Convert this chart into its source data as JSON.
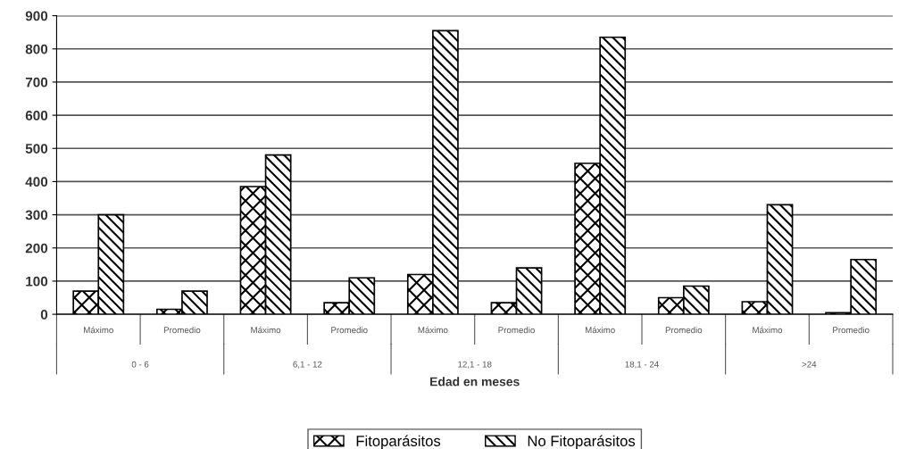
{
  "chart_data": {
    "type": "bar",
    "xlabel": "Edad en meses",
    "categories": [
      "Máximo",
      "Promedio",
      "Máximo",
      "Promedio",
      "Máximo",
      "Promedio",
      "Máximo",
      "Promedio",
      "Máximo",
      "Promedio"
    ],
    "annotations": [
      "0 - 6",
      "6,1 - 12",
      "12,1 - 18",
      "18,1 - 24",
      ">24"
    ],
    "series": [
      {
        "name": "Fitoparásitos",
        "color": "#000000",
        "values": [
          70,
          15,
          385,
          35,
          120,
          35,
          455,
          50,
          38,
          5
        ]
      },
      {
        "name": "No Fitoparásitos",
        "color": "#000000",
        "values": [
          300,
          70,
          480,
          110,
          855,
          140,
          835,
          85,
          330,
          165
        ]
      }
    ],
    "ylim": [
      0,
      900
    ],
    "yticks": [
      0,
      100,
      200,
      300,
      400,
      500,
      600,
      700,
      800,
      900
    ],
    "grid": "y",
    "legend": "bottom"
  }
}
